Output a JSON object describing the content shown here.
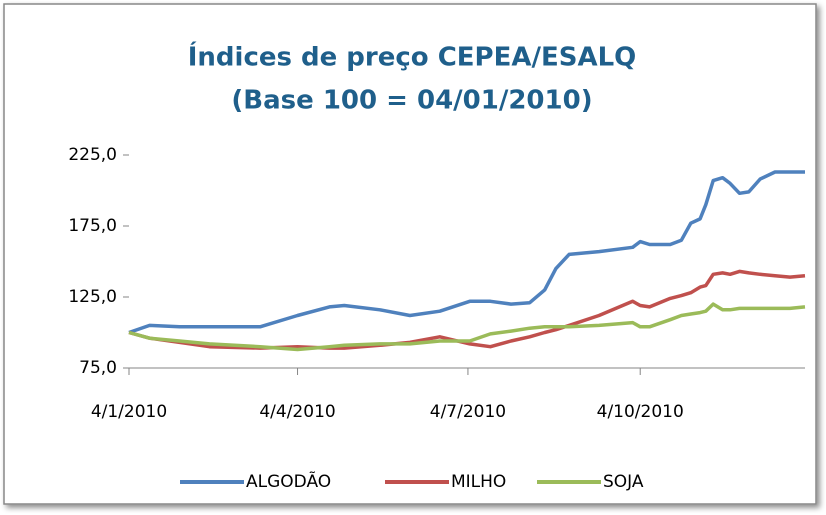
{
  "chart_data": {
    "type": "line",
    "title": "Índices de preço CEPEA/ESALQ",
    "subtitle": "(Base 100 = 04/01/2010)",
    "x": [
      "2010-01-04",
      "2010-01-15",
      "2010-01-31",
      "2010-02-16",
      "2010-03-15",
      "2010-04-04",
      "2010-04-21",
      "2010-04-29",
      "2010-05-18",
      "2010-06-03",
      "2010-06-19",
      "2010-07-05",
      "2010-07-16",
      "2010-07-27",
      "2010-08-06",
      "2010-08-14",
      "2010-08-20",
      "2010-08-27",
      "2010-09-12",
      "2010-09-30",
      "2010-10-04",
      "2010-10-09",
      "2010-10-20",
      "2010-10-26",
      "2010-10-31",
      "2010-11-05",
      "2010-11-08",
      "2010-11-12",
      "2010-11-17",
      "2010-11-21",
      "2010-11-26",
      "2010-12-01",
      "2010-12-07",
      "2010-12-15",
      "2010-12-23",
      "2010-12-31"
    ],
    "series": [
      {
        "name": "ALGODÃO",
        "color": "#4f81bd",
        "values": [
          100,
          105,
          104,
          104,
          104,
          112,
          118,
          119,
          116,
          112,
          115,
          122,
          122,
          120,
          121,
          130,
          145,
          155,
          157,
          160,
          164,
          162,
          162,
          165,
          177,
          180,
          190,
          207,
          209,
          205,
          198,
          199,
          208,
          213,
          213,
          213
        ]
      },
      {
        "name": "MILHO",
        "color": "#c0504d",
        "values": [
          100,
          96,
          93,
          90,
          89,
          90,
          89,
          89,
          91,
          93,
          97,
          92,
          90,
          94,
          97,
          100,
          102,
          105,
          112,
          122,
          119,
          118,
          124,
          126,
          128,
          132,
          133,
          141,
          142,
          141,
          143,
          142,
          141,
          140,
          139,
          140
        ]
      },
      {
        "name": "SOJA",
        "color": "#9bbb59",
        "values": [
          100,
          96,
          94,
          92,
          90,
          88,
          90,
          91,
          92,
          92,
          94,
          94,
          99,
          101,
          103,
          104,
          104,
          104,
          105,
          107,
          104,
          104,
          109,
          112,
          113,
          114,
          115,
          120,
          116,
          116,
          117,
          117,
          117,
          117,
          117,
          118
        ]
      }
    ],
    "xlim": [
      "2010-01-04",
      "2010-12-31"
    ],
    "xticks": [
      {
        "value": "2010-01-04",
        "label": "4/1/2010"
      },
      {
        "value": "2010-04-04",
        "label": "4/4/2010"
      },
      {
        "value": "2010-07-04",
        "label": "4/7/2010"
      },
      {
        "value": "2010-10-04",
        "label": "4/10/2010"
      }
    ],
    "ylim": [
      75,
      225
    ],
    "yticks": [
      {
        "value": 75,
        "label": "75,0"
      },
      {
        "value": 125,
        "label": "125,0"
      },
      {
        "value": 175,
        "label": "175,0"
      },
      {
        "value": 225,
        "label": "225,0"
      }
    ],
    "grid": false,
    "legend": "bottom"
  }
}
